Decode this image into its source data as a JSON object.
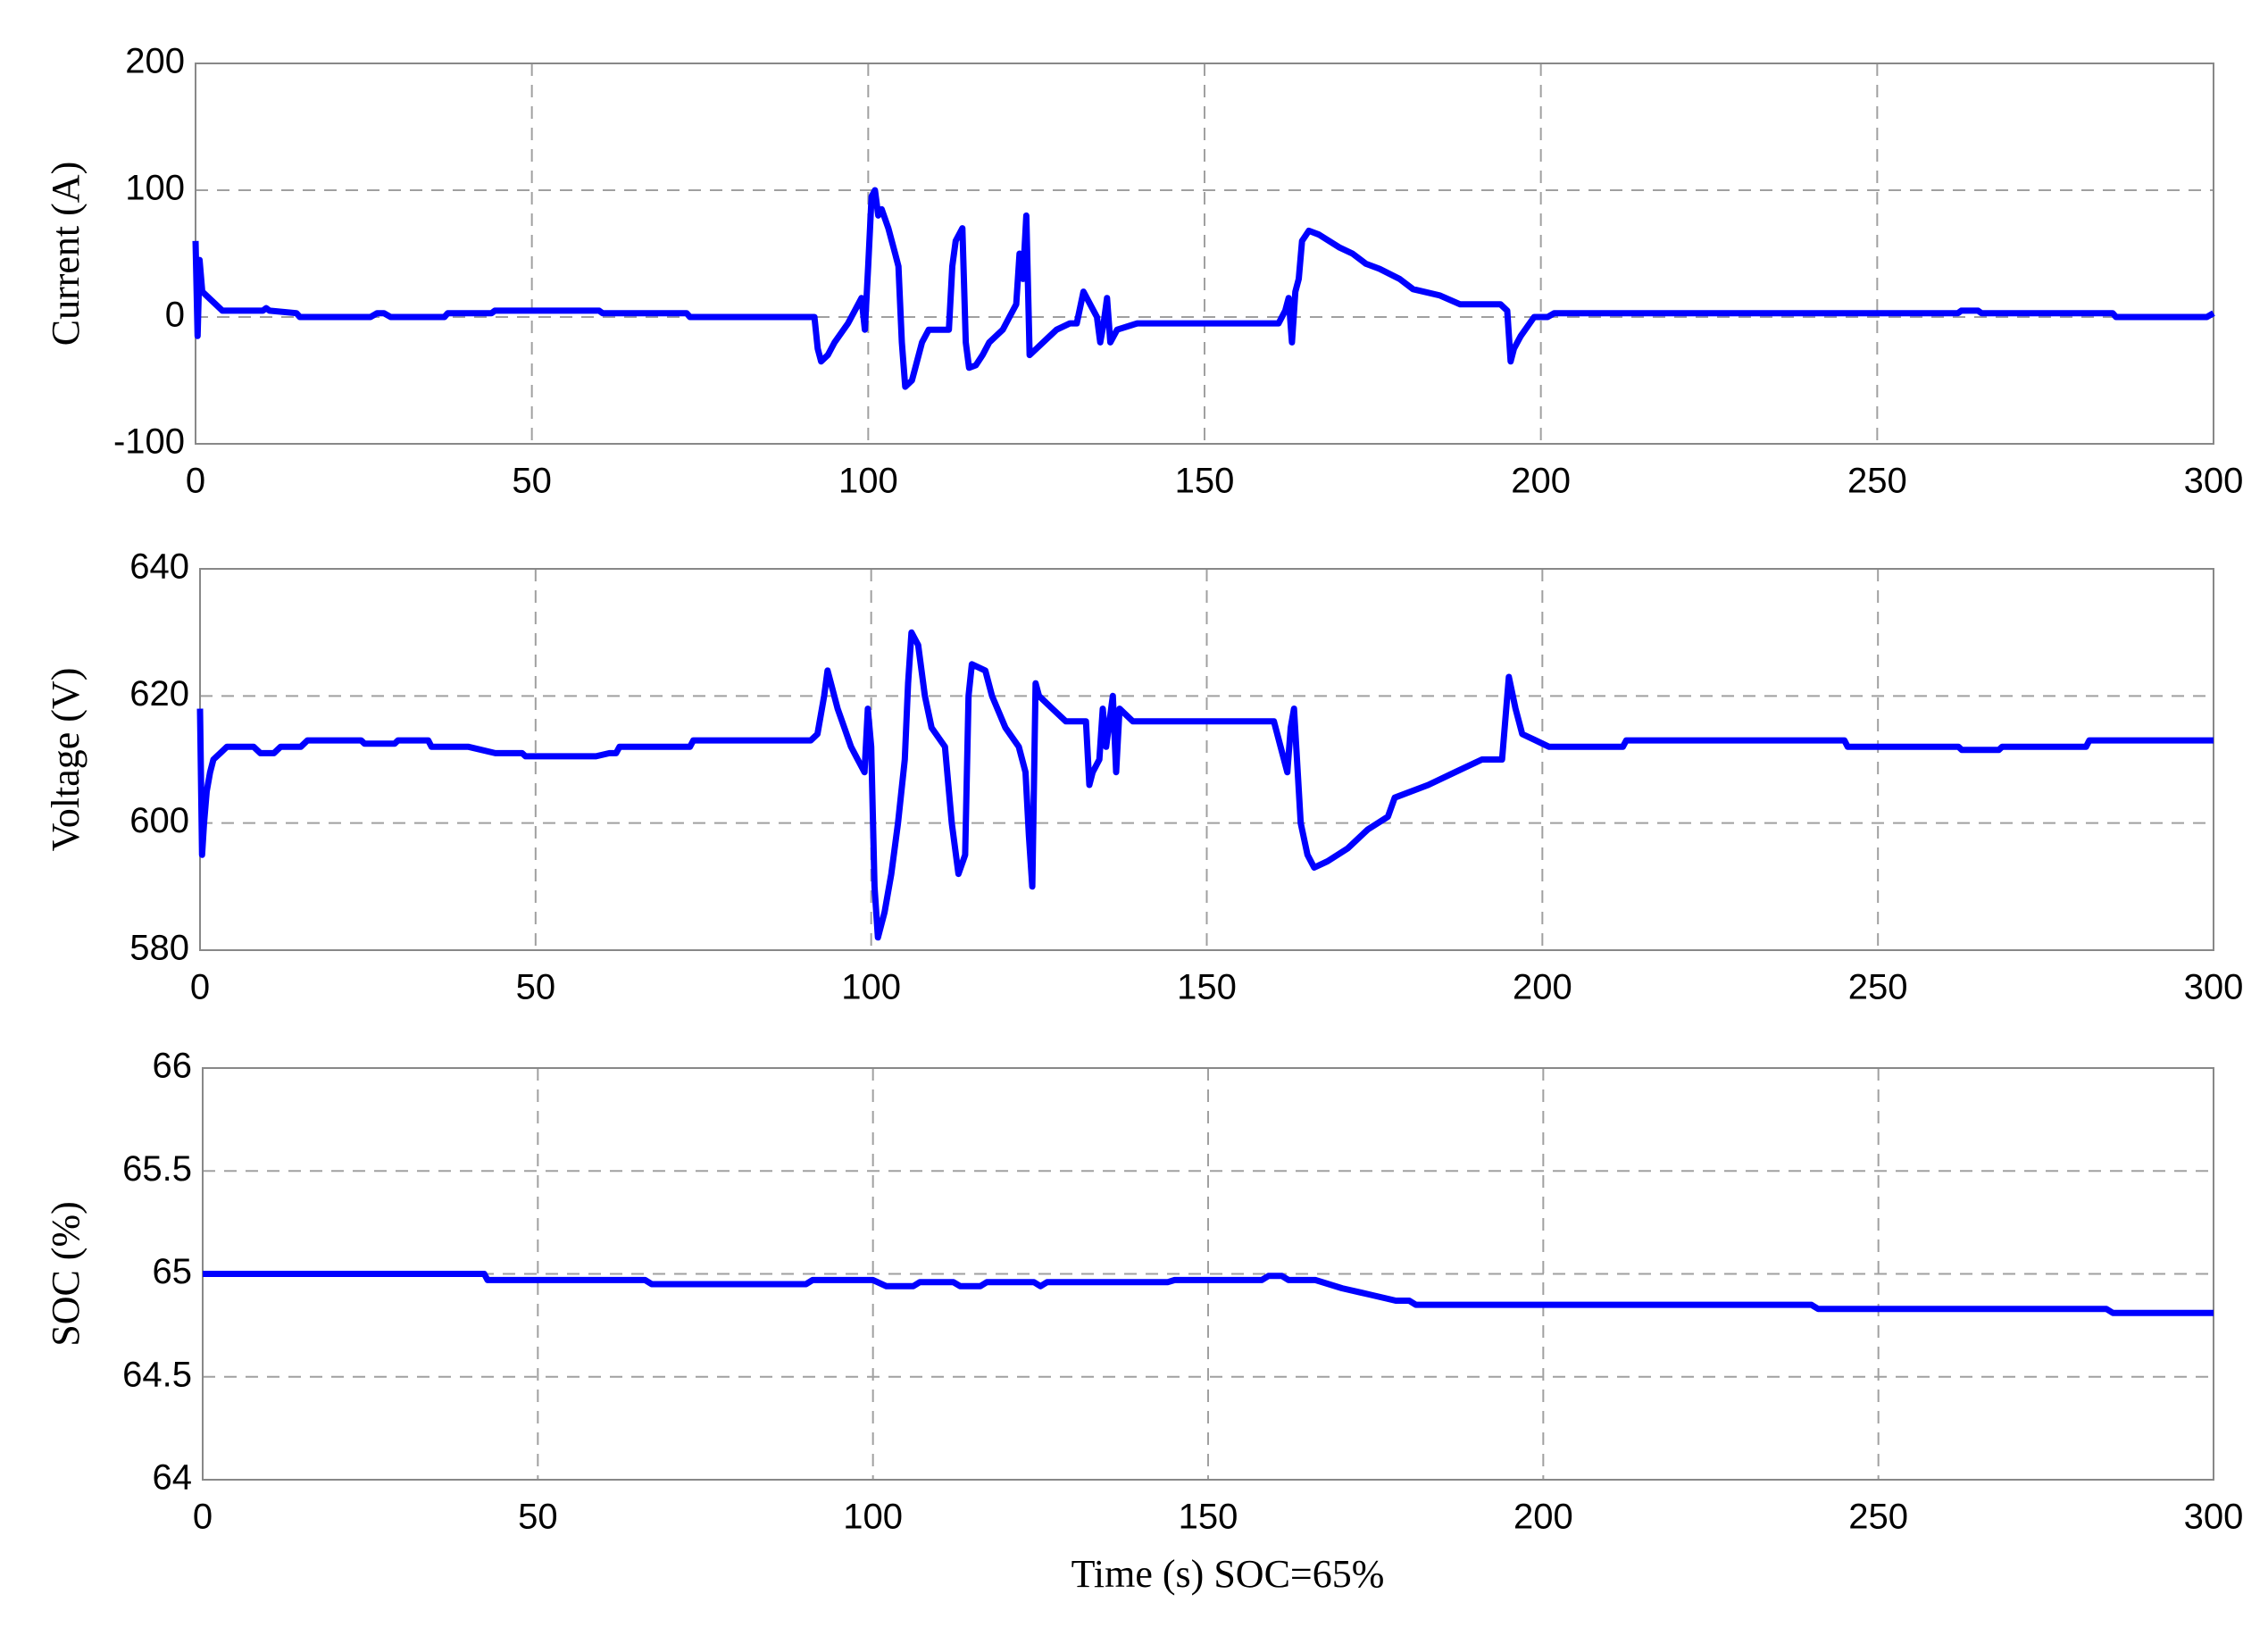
{
  "chart_data": [
    {
      "type": "line",
      "ylabel": "Current (A)",
      "color": "#0000ff",
      "x": [
        0,
        0.3,
        0.6,
        1,
        3,
        4,
        10,
        10.5,
        11,
        15,
        15.5,
        26,
        27,
        28,
        29,
        37,
        37.5,
        44,
        44.5,
        60,
        60.5,
        73,
        73.5,
        92,
        92.5,
        93,
        94,
        95,
        97,
        98,
        99,
        99.5,
        100,
        100.5,
        101,
        101.5,
        102,
        103,
        104,
        104.5,
        105,
        105.5,
        106.5,
        107,
        108,
        109,
        112,
        112.5,
        113,
        114,
        114.5,
        115,
        116,
        117,
        118,
        120,
        121,
        122,
        122.5,
        123,
        123.5,
        124,
        125,
        127,
        128,
        130,
        131,
        132,
        133,
        134,
        134.5,
        135,
        135.5,
        136,
        137,
        140,
        161,
        162,
        162.5,
        163,
        163.5,
        164,
        164.5,
        165.5,
        167,
        170,
        172,
        174,
        176,
        179,
        181,
        185,
        188,
        194,
        195,
        195.5,
        196,
        197,
        199,
        201,
        202,
        262,
        262.5,
        265,
        265.5,
        285,
        285.5,
        299,
        300
      ],
      "values": [
        60,
        -15,
        45,
        20,
        10,
        5,
        5,
        7,
        5,
        3,
        0,
        0,
        3,
        3,
        0,
        0,
        3,
        3,
        5,
        5,
        3,
        3,
        0,
        0,
        -25,
        -35,
        -30,
        -20,
        -5,
        5,
        15,
        -10,
        40,
        95,
        100,
        80,
        85,
        70,
        50,
        40,
        -20,
        -55,
        -50,
        -40,
        -20,
        -10,
        -10,
        40,
        60,
        70,
        -20,
        -40,
        -38,
        -30,
        -20,
        -10,
        0,
        10,
        50,
        30,
        80,
        -30,
        -25,
        -15,
        -10,
        -5,
        -5,
        20,
        10,
        0,
        -20,
        -5,
        15,
        -20,
        -10,
        -5,
        -5,
        5,
        15,
        -20,
        20,
        30,
        60,
        68,
        65,
        55,
        50,
        42,
        38,
        30,
        22,
        17,
        10,
        10,
        5,
        -35,
        -25,
        -15,
        0,
        0,
        3,
        3,
        5,
        5,
        3,
        3,
        0,
        0,
        3
      ],
      "xlim": [
        0,
        300
      ],
      "xticks": [
        0,
        50,
        100,
        150,
        200,
        250,
        300
      ],
      "ylim": [
        -100,
        200
      ],
      "yticks": [
        -100,
        0,
        100,
        200
      ],
      "grid": true
    },
    {
      "type": "line",
      "ylabel": "Voltage (V)",
      "color": "#0000ff",
      "x": [
        0,
        0.3,
        0.6,
        1,
        1.5,
        2,
        3,
        4,
        8,
        9,
        11,
        12,
        15,
        16,
        24,
        24.5,
        29,
        29.5,
        34,
        34.5,
        40,
        44,
        48,
        48.5,
        59,
        61,
        62,
        62.5,
        73,
        73.5,
        91,
        92,
        93,
        93.5,
        94,
        95,
        96,
        97,
        98,
        99,
        99.5,
        100,
        100.5,
        101,
        102,
        103,
        104,
        105,
        105.5,
        106,
        107,
        108,
        109,
        111,
        112,
        113,
        114,
        114.5,
        115,
        117,
        118,
        120,
        122,
        123,
        123.5,
        124,
        124.5,
        125,
        127,
        129,
        132,
        132.5,
        133,
        134,
        134.5,
        135,
        136,
        136.5,
        137,
        139,
        160,
        161,
        162,
        162.5,
        163,
        164,
        165,
        166,
        168,
        171,
        174,
        177,
        178,
        183,
        187,
        191,
        194,
        195,
        196,
        197,
        199,
        201,
        212,
        212.5,
        245,
        245.5,
        262,
        262.5,
        268,
        268.5,
        281,
        281.5,
        300
      ],
      "values": [
        618,
        595,
        600,
        605,
        608,
        610,
        611,
        612,
        612,
        611,
        611,
        612,
        612,
        613,
        613,
        612.5,
        612.5,
        613,
        613,
        612,
        612,
        611,
        611,
        610.5,
        610.5,
        611,
        611,
        612,
        612,
        613,
        613,
        614,
        620,
        624,
        622,
        618,
        615,
        612,
        610,
        608,
        618,
        612,
        590,
        582,
        586,
        592,
        600,
        610,
        622,
        630,
        628,
        620,
        615,
        612,
        600,
        592,
        595,
        620,
        625,
        624,
        620,
        615,
        612,
        608,
        598,
        590,
        622,
        620,
        618,
        616,
        616,
        606,
        608,
        610,
        618,
        612,
        620,
        608,
        618,
        616,
        616,
        612,
        608,
        615,
        618,
        600,
        595,
        593,
        594,
        596,
        599,
        601,
        604,
        606,
        608,
        610,
        610,
        623,
        618,
        614,
        613,
        612,
        612,
        613,
        613,
        612,
        612,
        611.5,
        611.5,
        612,
        612,
        613,
        613
      ],
      "xlim": [
        0,
        300
      ],
      "xticks": [
        0,
        50,
        100,
        150,
        200,
        250,
        300
      ],
      "ylim": [
        580,
        640
      ],
      "yticks": [
        580,
        600,
        620,
        640
      ],
      "grid": true
    },
    {
      "type": "line",
      "ylabel": "SOC  (%)",
      "xlabel": "Time (s)  SOC=65%",
      "color": "#0000ff",
      "x": [
        0,
        42,
        42.5,
        66,
        67,
        90,
        91,
        100,
        102,
        106,
        107,
        112,
        113,
        116,
        117,
        124,
        125,
        126,
        144,
        145,
        158,
        159,
        161,
        162,
        166,
        170,
        174,
        178,
        180,
        181,
        240,
        241,
        284,
        285,
        300
      ],
      "values": [
        65,
        65,
        64.97,
        64.97,
        64.95,
        64.95,
        64.97,
        64.97,
        64.94,
        64.94,
        64.96,
        64.96,
        64.94,
        64.94,
        64.96,
        64.96,
        64.94,
        64.96,
        64.96,
        64.97,
        64.97,
        64.99,
        64.99,
        64.97,
        64.97,
        64.93,
        64.9,
        64.87,
        64.87,
        64.85,
        64.85,
        64.83,
        64.83,
        64.81,
        64.81
      ],
      "xlim": [
        0,
        300
      ],
      "xticks": [
        0,
        50,
        100,
        150,
        200,
        250,
        300
      ],
      "ylim": [
        64,
        66
      ],
      "yticks": [
        64,
        64.5,
        65,
        65.5,
        66
      ],
      "grid": true
    }
  ]
}
